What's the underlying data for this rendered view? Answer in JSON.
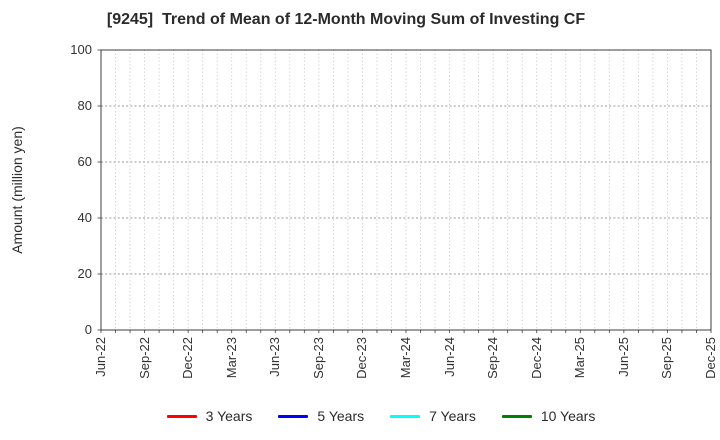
{
  "chart_data": {
    "type": "line",
    "title": "[9245]  Trend of Mean of 12-Month Moving Sum of Investing CF",
    "ylabel": "Amount (million yen)",
    "ylim": [
      0,
      100
    ],
    "yticks": [
      0,
      20,
      40,
      60,
      80,
      100
    ],
    "x_tick_labels": [
      "Jun-22",
      "Sep-22",
      "Dec-22",
      "Mar-23",
      "Jun-23",
      "Sep-23",
      "Dec-23",
      "Mar-24",
      "Jun-24",
      "Sep-24",
      "Dec-24",
      "Mar-25",
      "Jun-25",
      "Sep-25",
      "Dec-25"
    ],
    "x_major_interval_months": 3,
    "x_minor_interval_months": 1,
    "grid": true,
    "legend_position": "bottom",
    "series": [
      {
        "name": "3 Years",
        "color": "#ff0000",
        "values": []
      },
      {
        "name": "5 Years",
        "color": "#0000ff",
        "values": []
      },
      {
        "name": "7 Years",
        "color": "#00ffff",
        "values": []
      },
      {
        "name": "10 Years",
        "color": "#008000",
        "values": []
      }
    ]
  },
  "colors": {
    "grid_vertical": "#b8b8b8",
    "grid_horizontal": "#9a9a9a",
    "spine": "#3c3c3c",
    "text": "#2b2b2b"
  }
}
